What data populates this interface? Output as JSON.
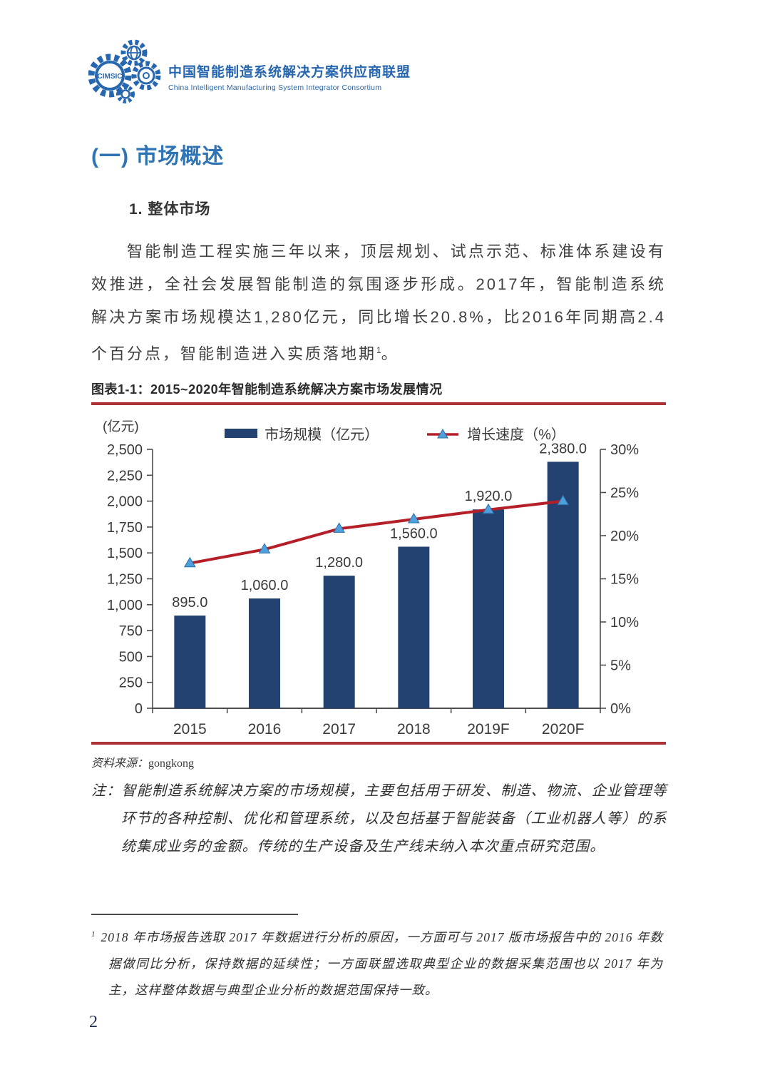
{
  "header": {
    "logo_acronym": "CIMSIC",
    "org_name_zh": "中国智能制造系统解决方案供应商联盟",
    "org_name_en": "China Intelligent Manufacturing System Integrator Consortium"
  },
  "section": {
    "heading": "(一) 市场概述",
    "subheading": "1. 整体市场"
  },
  "paragraph": {
    "text_before_sup": "智能制造工程实施三年以来，顶层规划、试点示范、标准体系建设有效推进，全社会发展智能制造的氛围逐步形成。2017年，智能制造系统解决方案市场规模达1,280亿元，同比增长20.8%，比2016年同期高2.4个百分点，智能制造进入实质落地期",
    "footnote_ref": "1",
    "text_after_sup": "。"
  },
  "figure": {
    "caption": "图表1-1：2015~2020年智能制造系统解决方案市场发展情况",
    "source_label": "资料来源：",
    "source_value": "gongkong",
    "note_label": "注：",
    "note_text": "智能制造系统解决方案的市场规模，主要包括用于研发、制造、物流、企业管理等环节的各种控制、优化和管理系统，以及包括基于智能装备（工业机器人等）的系统集成业务的金额。传统的生产设备及生产线未纳入本次重点研究范围。"
  },
  "chart_data": {
    "type": "bar",
    "categories": [
      "2015",
      "2016",
      "2017",
      "2018",
      "2019F",
      "2020F"
    ],
    "series": [
      {
        "name": "市场规模（亿元）",
        "type": "bar",
        "values": [
          895.0,
          1060.0,
          1280.0,
          1560.0,
          1920.0,
          2380.0
        ],
        "labels": [
          "895.0",
          "1,060.0",
          "1,280.0",
          "1,560.0",
          "1,920.0",
          "2,380.0"
        ],
        "color": "#234272"
      },
      {
        "name": "增长速度（%）",
        "type": "line",
        "values": [
          16.8,
          18.4,
          20.8,
          21.9,
          23.0,
          24.0
        ],
        "color": "#b51f27",
        "marker_color": "#4da0dc"
      }
    ],
    "left_axis": {
      "label": "(亿元)",
      "min": 0,
      "max": 2500,
      "step": 250,
      "ticks": [
        "0",
        "250",
        "500",
        "750",
        "1,000",
        "1,250",
        "1,500",
        "1,750",
        "2,000",
        "2,250",
        "2,500"
      ]
    },
    "right_axis": {
      "min": 0,
      "max": 30,
      "step": 5,
      "ticks": [
        "0%",
        "5%",
        "10%",
        "15%",
        "20%",
        "25%",
        "30%"
      ]
    },
    "legend_position": "top",
    "grid": false
  },
  "footnote": {
    "marker": "1",
    "text": "2018 年市场报告选取 2017 年数据进行分析的原因，一方面可与 2017 版市场报告中的 2016 年数据做同比分析，保持数据的延续性；一方面联盟选取典型企业的数据采集范围也以 2017 年为主，这样整体数据与典型企业分析的数据范围保持一致。"
  },
  "page": {
    "number": "2"
  },
  "colors": {
    "accent_blue": "#2e74b5",
    "logo_blue": "#2767b0",
    "bar_navy": "#234272",
    "line_red": "#b51f27",
    "marker_blue": "#4da0dc",
    "rule_red": "#ac3136",
    "axis_gray": "#4d4d4d"
  }
}
